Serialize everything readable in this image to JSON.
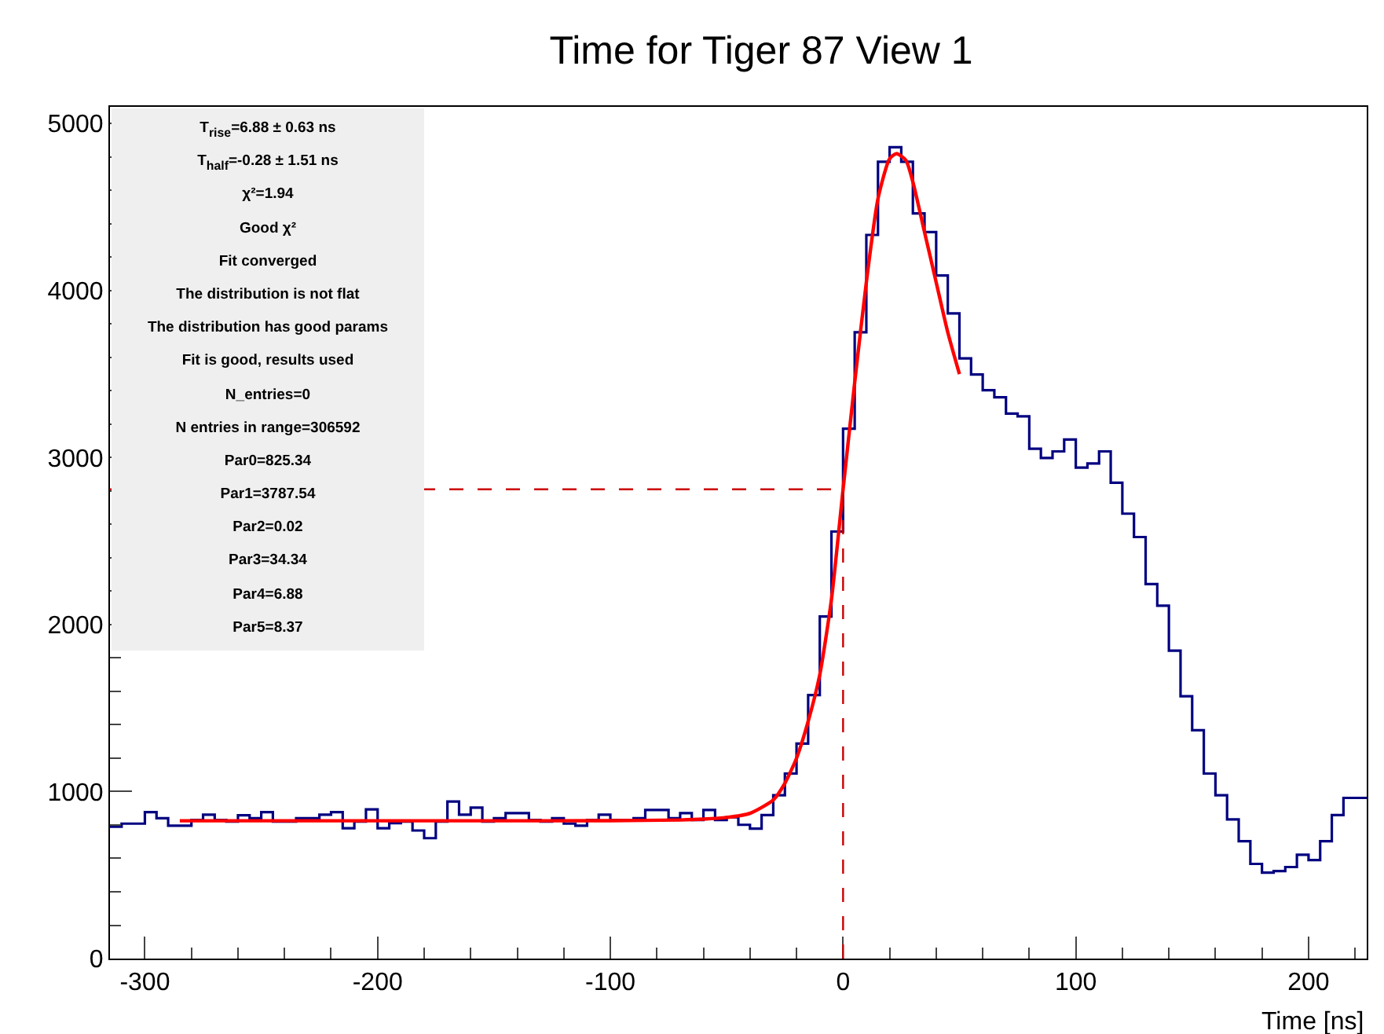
{
  "chart_data": {
    "type": "histogram",
    "title": "Time for Tiger 87 View 1",
    "xlabel": "Time [ns]",
    "bins": [
      -315,
      -310,
      -305,
      -300,
      -295,
      -290,
      -285,
      -280,
      -275,
      -270,
      -265,
      -260,
      -255,
      -250,
      -245,
      -240,
      -235,
      -230,
      -225,
      -220,
      -215,
      -210,
      -205,
      -200,
      -195,
      -190,
      -185,
      -180,
      -175,
      -170,
      -165,
      -160,
      -155,
      -150,
      -145,
      -140,
      -135,
      -130,
      -125,
      -120,
      -115,
      -110,
      -105,
      -100,
      -95,
      -90,
      -85,
      -80,
      -75,
      -70,
      -65,
      -60,
      -55,
      -50,
      -45,
      -40,
      -35,
      -30,
      -25,
      -20,
      -15,
      -10,
      -5,
      0,
      5,
      10,
      15,
      20,
      25,
      30,
      35,
      40,
      45,
      50,
      55,
      60,
      65,
      70,
      75,
      80,
      85,
      90,
      95,
      100,
      105,
      110,
      115,
      120,
      125,
      130,
      135,
      140,
      145,
      150,
      155,
      160,
      165,
      170,
      175,
      180,
      185,
      190,
      195,
      200,
      205,
      210,
      215,
      220,
      225
    ],
    "series": [
      {
        "color": "#000080",
        "values": [
          790,
          808,
          808,
          877,
          840,
          796,
          796,
          830,
          862,
          830,
          820,
          858,
          840,
          877,
          820,
          820,
          840,
          840,
          862,
          877,
          780,
          820,
          893,
          780,
          811,
          820,
          767,
          721,
          820,
          940,
          862,
          904,
          820,
          840,
          871,
          871,
          830,
          820,
          840,
          808,
          796,
          830,
          862,
          830,
          830,
          840,
          890,
          890,
          840,
          871,
          830,
          890,
          830,
          846,
          801,
          778,
          859,
          978,
          1108,
          1287,
          1578,
          2048,
          2557,
          3173,
          3750,
          4333,
          4771,
          4858,
          4771,
          4462,
          4350,
          4090,
          3863,
          3594,
          3497,
          3403,
          3361,
          3263,
          3247,
          3053,
          2998,
          3037,
          3108,
          2940,
          2965,
          3037,
          2849,
          2664,
          2524,
          2242,
          2113,
          1844,
          1571,
          1367,
          1108,
          978,
          833,
          703,
          567,
          515,
          524,
          548,
          622,
          590,
          703,
          859,
          962,
          962
        ]
      },
      {
        "type": "line",
        "color": "#ff0000",
        "x": [
          -285,
          -250,
          -200,
          -150,
          -100,
          -70,
          -60,
          -50,
          -40,
          -30,
          -25,
          -20,
          -15,
          -10,
          -5,
          0,
          5,
          10,
          15,
          20,
          23,
          27,
          30,
          35,
          40,
          45,
          50
        ],
        "values": [
          825,
          825,
          825,
          825,
          826,
          830,
          835,
          845,
          870,
          950,
          1050,
          1200,
          1420,
          1700,
          2150,
          2810,
          3450,
          4050,
          4550,
          4790,
          4820,
          4780,
          4650,
          4350,
          4050,
          3750,
          3500
        ]
      }
    ],
    "xlim": [
      -315,
      225
    ],
    "xticks": [
      -300,
      -200,
      -100,
      0,
      100,
      200
    ],
    "ylim": [
      0,
      5100
    ],
    "yticks": [
      0,
      1000,
      2000,
      3000,
      4000,
      5000
    ],
    "ref_lines": [
      {
        "axis": "x",
        "value": 0,
        "color": "#cc0000",
        "line_style": "dashed"
      },
      {
        "axis": "y",
        "value": 2810,
        "color": "#cc0000",
        "line_style": "dashed"
      }
    ],
    "annotations": [
      "T$_{rise}$=6.88 ± 0.63 ns",
      "T$_{half}$=-0.28 ± 1.51 ns",
      "χ²=1.94",
      "Good χ²",
      "Fit converged",
      "The distribution is not flat",
      "The distribution has good params",
      "Fit is good, results used",
      "N_entries=0",
      "N entries in range=306592",
      "Par0=825.34",
      "Par1=3787.54",
      "Par2=0.02",
      "Par3=34.34",
      "Par4=6.88",
      "Par5=8.37"
    ],
    "grid": false,
    "legend": false
  }
}
